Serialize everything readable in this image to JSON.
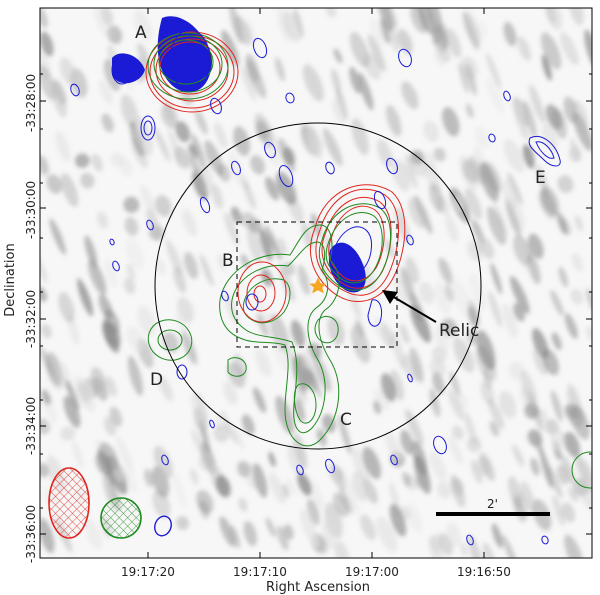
{
  "axes": {
    "xlabel": "Right Ascension",
    "ylabel": "Declination",
    "x_ticks": [
      "19:17:20",
      "19:17:10",
      "19:17:00",
      "19:16:50"
    ],
    "y_ticks": [
      "-33:28:00",
      "-33:30:00",
      "-33:32:00",
      "-33:34:00",
      "-33:36:00"
    ]
  },
  "labels": {
    "A": "A",
    "B": "B",
    "C": "C",
    "D": "D",
    "E": "E",
    "relic": "Relic"
  },
  "scalebar": {
    "text": "2'"
  },
  "colors": {
    "red": "#e0251e",
    "green": "#1f8a1f",
    "blue": "#1b1bd6",
    "star": "#f6a623",
    "frame": "#000000"
  }
}
